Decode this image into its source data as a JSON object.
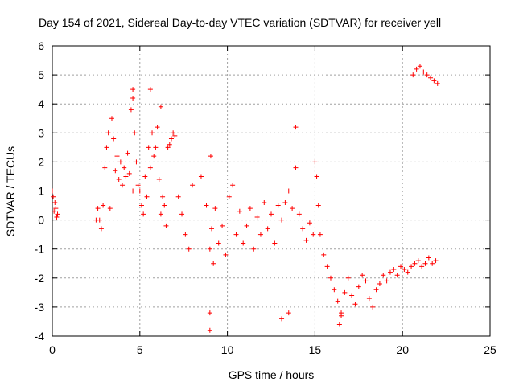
{
  "chart_data": {
    "type": "scatter",
    "title": "Day 154 of 2021, Sidereal Day-to-day VTEC variation (SDTVAR) for receiver yell",
    "xlabel": "GPS time / hours",
    "ylabel": "SDTVAR / TECUs",
    "xlim": [
      0,
      25
    ],
    "ylim": [
      -4,
      6
    ],
    "xticks": [
      "0",
      "5",
      "10",
      "15",
      "20",
      "25"
    ],
    "yticks": [
      "-4",
      "-3",
      "-2",
      "-1",
      "0",
      "1",
      "2",
      "3",
      "4",
      "5",
      "6"
    ],
    "grid": true,
    "marker": "+",
    "color": "#ff0000",
    "series": [
      {
        "name": "SDTVAR",
        "x": [
          0.0,
          0.05,
          0.1,
          0.15,
          0.2,
          0.25,
          0.3,
          2.5,
          2.6,
          2.7,
          2.8,
          2.9,
          3.0,
          3.1,
          3.2,
          3.3,
          3.4,
          3.5,
          3.6,
          3.7,
          3.8,
          3.9,
          4.0,
          4.1,
          4.2,
          4.3,
          4.4,
          4.5,
          4.6,
          4.7,
          4.8,
          4.9,
          5.0,
          5.1,
          5.2,
          5.3,
          5.4,
          5.5,
          5.6,
          5.7,
          5.8,
          5.9,
          6.0,
          6.1,
          6.2,
          6.3,
          6.4,
          6.5,
          6.6,
          6.7,
          6.8,
          6.9,
          7.0,
          7.2,
          7.4,
          7.6,
          7.8,
          8.0,
          8.5,
          8.8,
          9.0,
          9.1,
          9.2,
          9.3,
          9.5,
          9.7,
          9.9,
          10.1,
          10.3,
          10.5,
          10.7,
          10.9,
          11.1,
          11.3,
          11.5,
          11.7,
          11.9,
          12.1,
          12.3,
          12.5,
          12.7,
          12.9,
          13.1,
          13.3,
          13.5,
          13.7,
          13.9,
          14.1,
          14.3,
          14.5,
          14.7,
          14.9,
          15.0,
          15.1,
          15.2,
          15.3,
          15.5,
          15.7,
          15.9,
          16.1,
          16.3,
          16.5,
          16.7,
          16.9,
          17.1,
          17.3,
          17.5,
          17.7,
          17.9,
          18.1,
          18.3,
          18.5,
          18.7,
          18.9,
          19.1,
          19.3,
          19.5,
          19.7,
          19.9,
          20.1,
          20.3,
          20.5,
          20.7,
          20.9,
          21.1,
          21.3,
          21.5,
          21.7,
          21.9,
          20.6,
          20.8,
          21.0,
          21.2,
          21.4,
          21.6,
          21.8,
          22.0,
          9.0,
          9.0,
          9.05,
          4.6,
          4.6,
          5.6,
          6.2,
          13.9,
          13.1,
          13.5,
          16.4,
          16.5
        ],
        "y": [
          1.0,
          0.8,
          0.3,
          0.6,
          0.4,
          0.1,
          0.2,
          0.0,
          0.4,
          0.0,
          -0.3,
          0.5,
          1.8,
          2.5,
          3.0,
          0.4,
          3.5,
          2.8,
          1.7,
          2.2,
          1.4,
          2.0,
          1.2,
          1.8,
          1.5,
          2.3,
          1.6,
          3.8,
          1.0,
          3.0,
          2.0,
          1.2,
          1.0,
          0.5,
          0.2,
          1.5,
          0.8,
          2.5,
          1.8,
          3.0,
          2.2,
          2.5,
          3.2,
          1.4,
          0.2,
          0.8,
          0.5,
          -0.2,
          2.5,
          2.6,
          2.8,
          3.0,
          2.9,
          0.8,
          0.2,
          -0.5,
          -1.0,
          1.2,
          1.5,
          0.5,
          -1.0,
          -0.3,
          -1.5,
          0.4,
          -0.8,
          -0.2,
          -1.2,
          0.8,
          1.2,
          -0.5,
          0.3,
          -0.8,
          -0.2,
          0.4,
          -1.0,
          0.1,
          -0.5,
          0.6,
          -0.3,
          0.2,
          -0.8,
          0.5,
          0.0,
          0.6,
          1.0,
          0.4,
          1.8,
          0.2,
          -0.3,
          -0.7,
          -0.1,
          -0.5,
          2.0,
          1.5,
          0.5,
          -0.5,
          -1.2,
          -1.6,
          -2.0,
          -2.4,
          -2.8,
          -3.2,
          -2.5,
          -2.0,
          -2.6,
          -2.9,
          -2.3,
          -1.9,
          -2.1,
          -2.7,
          -3.0,
          -2.4,
          -2.2,
          -1.9,
          -2.1,
          -1.8,
          -1.7,
          -1.9,
          -1.6,
          -1.7,
          -1.8,
          -1.6,
          -1.5,
          -1.4,
          -1.6,
          -1.5,
          -1.3,
          -1.5,
          -1.4,
          5.0,
          5.2,
          5.3,
          5.1,
          5.0,
          4.9,
          4.8,
          4.7,
          -3.8,
          -3.2,
          2.2,
          4.5,
          4.2,
          4.5,
          3.9,
          3.2,
          -3.4,
          -3.2,
          -3.6,
          -3.3
        ]
      }
    ]
  }
}
